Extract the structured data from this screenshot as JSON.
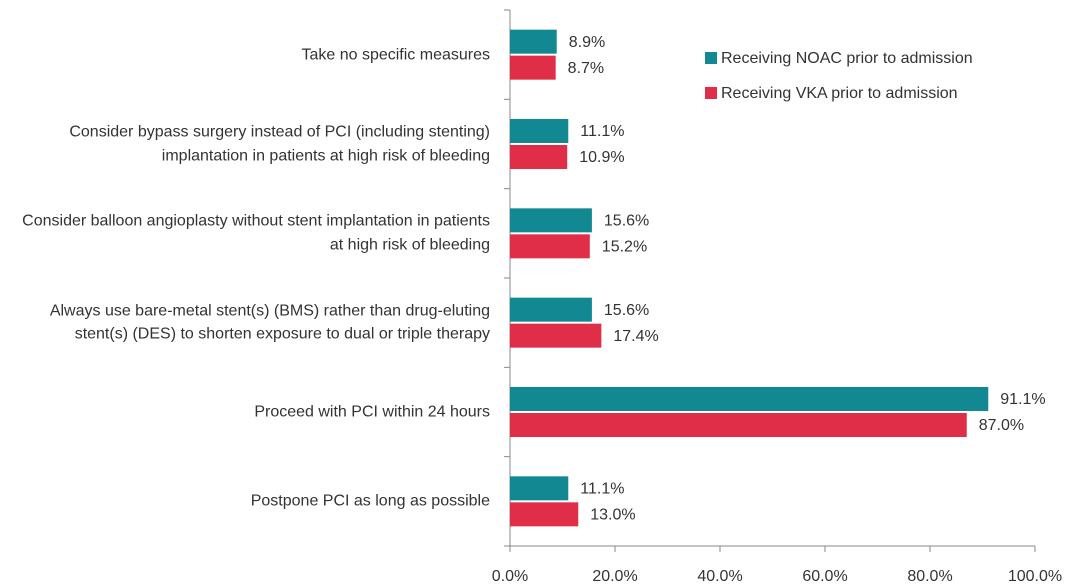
{
  "chart_data": {
    "type": "bar",
    "orientation": "horizontal",
    "categories": [
      "Take no specific measures",
      "Consider bypass surgery instead of PCI (including stenting) implantation in patients at high risk of bleeding",
      "Consider balloon angioplasty without stent implantation in patients at high risk of bleeding",
      "Always use bare-metal stent(s) (BMS) rather than drug-eluting stent(s) (DES) to shorten exposure to dual or triple therapy",
      "Proceed with PCI within 24 hours",
      "Postpone PCI as long as possible"
    ],
    "series": [
      {
        "name": "Receiving NOAC prior to admission",
        "color": "#128893",
        "values": [
          8.9,
          11.1,
          15.6,
          15.6,
          91.1,
          11.1
        ],
        "value_labels": [
          "8.9%",
          "11.1%",
          "15.6%",
          "15.6%",
          "91.1%",
          "11.1%"
        ]
      },
      {
        "name": "Receiving VKA prior to admission",
        "color": "#e02d48",
        "values": [
          8.7,
          10.9,
          15.2,
          17.4,
          87.0,
          13.0
        ],
        "value_labels": [
          "8.7%",
          "10.9%",
          "15.2%",
          "17.4%",
          "87.0%",
          "13.0%"
        ]
      }
    ],
    "xlim": [
      0,
      100
    ],
    "xticks": [
      {
        "value": 0,
        "label": "0.0%"
      },
      {
        "value": 20,
        "label": "20.0%"
      },
      {
        "value": 40,
        "label": "40.0%"
      },
      {
        "value": 60,
        "label": "60.0%"
      },
      {
        "value": 80,
        "label": "80.0%"
      },
      {
        "value": 100,
        "label": "100.0%"
      }
    ],
    "legend": "upper right"
  }
}
